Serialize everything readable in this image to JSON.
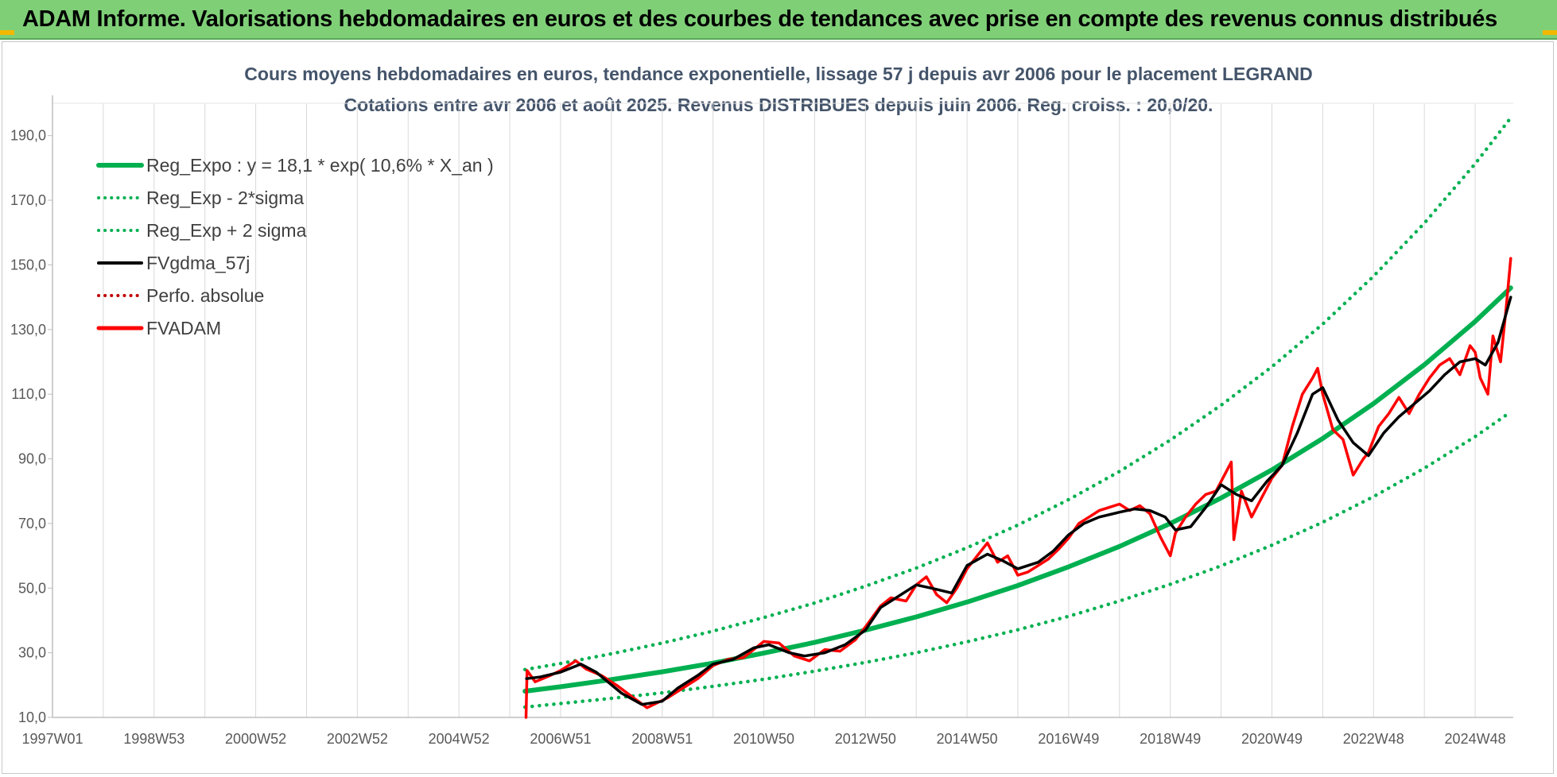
{
  "header": {
    "title": "ADAM Informe. Valorisations hebdomadaires en euros et des courbes de tendances avec prise en compte des revenus connus distribués"
  },
  "colors": {
    "banner": "#7fcf77",
    "reg_expo": "#00b050",
    "fvgdma": "#000000",
    "fvadam": "#ff0000",
    "perfo": "#c00000",
    "title_text": "#44546a"
  },
  "chart_data": {
    "type": "line",
    "title": "Cours moyens hebdomadaires en euros, tendance exponentielle, lissage 57 j depuis avr 2006 pour le placement LEGRAND",
    "subtitle": "Cotations entre avr 2006 et août 2025. Revenus DISTRIBUES depuis juin 2006. Reg. croiss. : 20,0/20.",
    "xlabel": "",
    "ylabel": "",
    "x_axis_unit": "year",
    "x_ticks": [
      {
        "label": "1997W01",
        "x": 1997.0
      },
      {
        "label": "1998W53",
        "x": 1999.0
      },
      {
        "label": "2000W52",
        "x": 2001.0
      },
      {
        "label": "2002W52",
        "x": 2003.0
      },
      {
        "label": "2004W52",
        "x": 2005.0
      },
      {
        "label": "2006W51",
        "x": 2007.0
      },
      {
        "label": "2008W51",
        "x": 2009.0
      },
      {
        "label": "2010W50",
        "x": 2011.0
      },
      {
        "label": "2012W50",
        "x": 2013.0
      },
      {
        "label": "2014W50",
        "x": 2015.0
      },
      {
        "label": "2016W49",
        "x": 2017.0
      },
      {
        "label": "2018W49",
        "x": 2019.0
      },
      {
        "label": "2020W49",
        "x": 2021.0
      },
      {
        "label": "2022W48",
        "x": 2023.0
      },
      {
        "label": "2024W48",
        "x": 2025.0
      }
    ],
    "xlim": [
      1997.0,
      2025.75
    ],
    "ylim": [
      10,
      200
    ],
    "y_ticks": [
      10,
      30,
      50,
      70,
      90,
      110,
      130,
      150,
      170,
      190
    ],
    "y_tick_labels": [
      "10,0",
      "30,0",
      "50,0",
      "70,0",
      "90,0",
      "110,0",
      "130,0",
      "150,0",
      "170,0",
      "190,0"
    ],
    "grid": "vertical",
    "legend_position": "top-left",
    "regression": {
      "a": 18.1,
      "rate": 0.106,
      "start_year": 2006.3
    },
    "band_factor_low": 0.731,
    "band_factor_high": 1.368,
    "series": [
      {
        "name": "Reg_Expo : y = 18,1 * exp( 10,6% *  X_an )",
        "style": "solid-thick",
        "color": "#00b050",
        "x": [
          2006.3,
          2007,
          2008,
          2009,
          2010,
          2011,
          2012,
          2013,
          2014,
          2015,
          2016,
          2017,
          2018,
          2019,
          2020,
          2021,
          2022,
          2023,
          2024,
          2025,
          2025.7
        ],
        "values": [
          18.1,
          19.5,
          21.7,
          24.1,
          26.8,
          29.9,
          33.2,
          37.0,
          41.1,
          45.7,
          50.8,
          56.6,
          62.9,
          70.0,
          77.9,
          86.6,
          96.3,
          107.1,
          119.1,
          132.5,
          142.9
        ]
      },
      {
        "name": "Reg_Exp - 2*sigma",
        "style": "dotted",
        "color": "#00b050",
        "x": [
          2006.3,
          2007,
          2008,
          2009,
          2010,
          2011,
          2012,
          2013,
          2014,
          2015,
          2016,
          2017,
          2018,
          2019,
          2020,
          2021,
          2022,
          2023,
          2024,
          2025,
          2025.7
        ],
        "values": [
          13.2,
          14.3,
          15.9,
          17.6,
          19.6,
          21.8,
          24.3,
          27.0,
          30.0,
          33.4,
          37.1,
          41.3,
          46.0,
          51.2,
          56.9,
          63.3,
          70.4,
          78.3,
          87.1,
          96.9,
          104.5
        ]
      },
      {
        "name": "Reg_Exp + 2 sigma",
        "style": "dotted",
        "color": "#00b050",
        "x": [
          2006.3,
          2007,
          2008,
          2009,
          2010,
          2011,
          2012,
          2013,
          2014,
          2015,
          2016,
          2017,
          2018,
          2019,
          2020,
          2021,
          2022,
          2023,
          2024,
          2025,
          2025.7
        ],
        "values": [
          24.8,
          26.7,
          29.7,
          33.0,
          36.7,
          40.9,
          45.4,
          50.6,
          56.2,
          62.5,
          69.5,
          77.4,
          86.1,
          95.8,
          106.6,
          118.5,
          131.7,
          146.5,
          162.9,
          181.3,
          195.5
        ]
      },
      {
        "name": "FVgdma_57j",
        "style": "solid",
        "color": "#000000",
        "x": [
          2006.33,
          2006.6,
          2007.0,
          2007.4,
          2007.7,
          2008.2,
          2008.6,
          2009.0,
          2009.3,
          2009.7,
          2010.0,
          2010.4,
          2010.8,
          2011.1,
          2011.5,
          2011.8,
          2012.2,
          2012.6,
          2013.0,
          2013.3,
          2013.6,
          2014.0,
          2014.3,
          2014.7,
          2015.0,
          2015.4,
          2015.7,
          2016.0,
          2016.4,
          2016.7,
          2017.0,
          2017.3,
          2017.6,
          2018.0,
          2018.3,
          2018.6,
          2018.9,
          2019.1,
          2019.4,
          2019.7,
          2020.0,
          2020.3,
          2020.6,
          2020.9,
          2021.2,
          2021.5,
          2021.8,
          2022.0,
          2022.3,
          2022.6,
          2022.9,
          2023.2,
          2023.5,
          2023.8,
          2024.1,
          2024.4,
          2024.7,
          2025.0,
          2025.2,
          2025.45,
          2025.7
        ],
        "values": [
          22.0,
          22.5,
          24.0,
          26.5,
          24.0,
          17.5,
          14.0,
          15.0,
          19.0,
          23.0,
          26.5,
          28.0,
          31.5,
          32.5,
          30.0,
          29.0,
          30.0,
          32.5,
          37.0,
          44.0,
          47.0,
          51.0,
          50.0,
          48.5,
          57.0,
          60.5,
          58.5,
          56.0,
          58.0,
          61.5,
          66.5,
          70.0,
          72.0,
          73.5,
          74.5,
          74.0,
          72.0,
          68.0,
          69.0,
          75.0,
          82.0,
          79.0,
          77.0,
          83.0,
          88.0,
          98.0,
          110.0,
          112.0,
          102.0,
          95.0,
          91.0,
          98.0,
          103.0,
          107.0,
          111.0,
          116.0,
          120.0,
          121.0,
          119.0,
          126.0,
          140.0
        ]
      },
      {
        "name": "Perfo. absolue",
        "style": "dotted",
        "color": "#c00000",
        "x": [],
        "values": []
      },
      {
        "name": "FVADAM",
        "style": "solid-thick",
        "color": "#ff0000",
        "x": [
          2006.32,
          2006.34,
          2006.5,
          2006.8,
          2007.0,
          2007.3,
          2007.5,
          2007.8,
          2008.1,
          2008.4,
          2008.7,
          2008.9,
          2009.1,
          2009.4,
          2009.7,
          2010.0,
          2010.3,
          2010.6,
          2010.8,
          2011.0,
          2011.3,
          2011.6,
          2011.9,
          2012.2,
          2012.5,
          2012.8,
          2013.0,
          2013.3,
          2013.5,
          2013.8,
          2014.0,
          2014.2,
          2014.4,
          2014.6,
          2014.8,
          2015.0,
          2015.2,
          2015.4,
          2015.6,
          2015.8,
          2016.0,
          2016.2,
          2016.4,
          2016.6,
          2016.8,
          2017.0,
          2017.2,
          2017.4,
          2017.6,
          2017.8,
          2018.0,
          2018.2,
          2018.4,
          2018.6,
          2018.8,
          2019.0,
          2019.1,
          2019.3,
          2019.5,
          2019.7,
          2019.9,
          2020.1,
          2020.2,
          2020.25,
          2020.4,
          2020.6,
          2020.8,
          2021.0,
          2021.2,
          2021.4,
          2021.6,
          2021.8,
          2021.9,
          2022.0,
          2022.2,
          2022.4,
          2022.6,
          2022.8,
          2022.9,
          2023.1,
          2023.3,
          2023.5,
          2023.7,
          2023.9,
          2024.1,
          2024.3,
          2024.5,
          2024.7,
          2024.9,
          2025.0,
          2025.1,
          2025.25,
          2025.35,
          2025.5,
          2025.6,
          2025.7
        ],
        "values": [
          10.0,
          24.5,
          21.0,
          23.0,
          24.5,
          27.5,
          25.0,
          23.0,
          20.0,
          16.5,
          13.0,
          14.5,
          16.0,
          19.0,
          22.0,
          26.0,
          28.0,
          28.5,
          31.0,
          33.5,
          33.0,
          29.0,
          27.5,
          31.0,
          30.5,
          34.0,
          38.0,
          44.5,
          47.0,
          46.0,
          51.0,
          53.5,
          48.0,
          45.5,
          50.0,
          56.0,
          60.0,
          64.0,
          58.0,
          60.0,
          54.0,
          55.0,
          57.0,
          59.0,
          62.0,
          65.5,
          70.0,
          72.0,
          74.0,
          75.0,
          76.0,
          74.0,
          75.5,
          73.0,
          66.0,
          60.0,
          67.0,
          72.0,
          76.0,
          79.0,
          80.0,
          86.0,
          89.0,
          65.0,
          80.0,
          72.0,
          78.0,
          84.0,
          88.0,
          100.0,
          110.0,
          115.0,
          118.0,
          110.0,
          99.0,
          96.0,
          85.0,
          90.0,
          92.0,
          100.0,
          104.0,
          109.0,
          104.0,
          110.0,
          115.0,
          119.0,
          121.0,
          116.0,
          125.0,
          123.0,
          115.0,
          110.0,
          128.0,
          120.0,
          135.0,
          152.0
        ]
      }
    ]
  }
}
